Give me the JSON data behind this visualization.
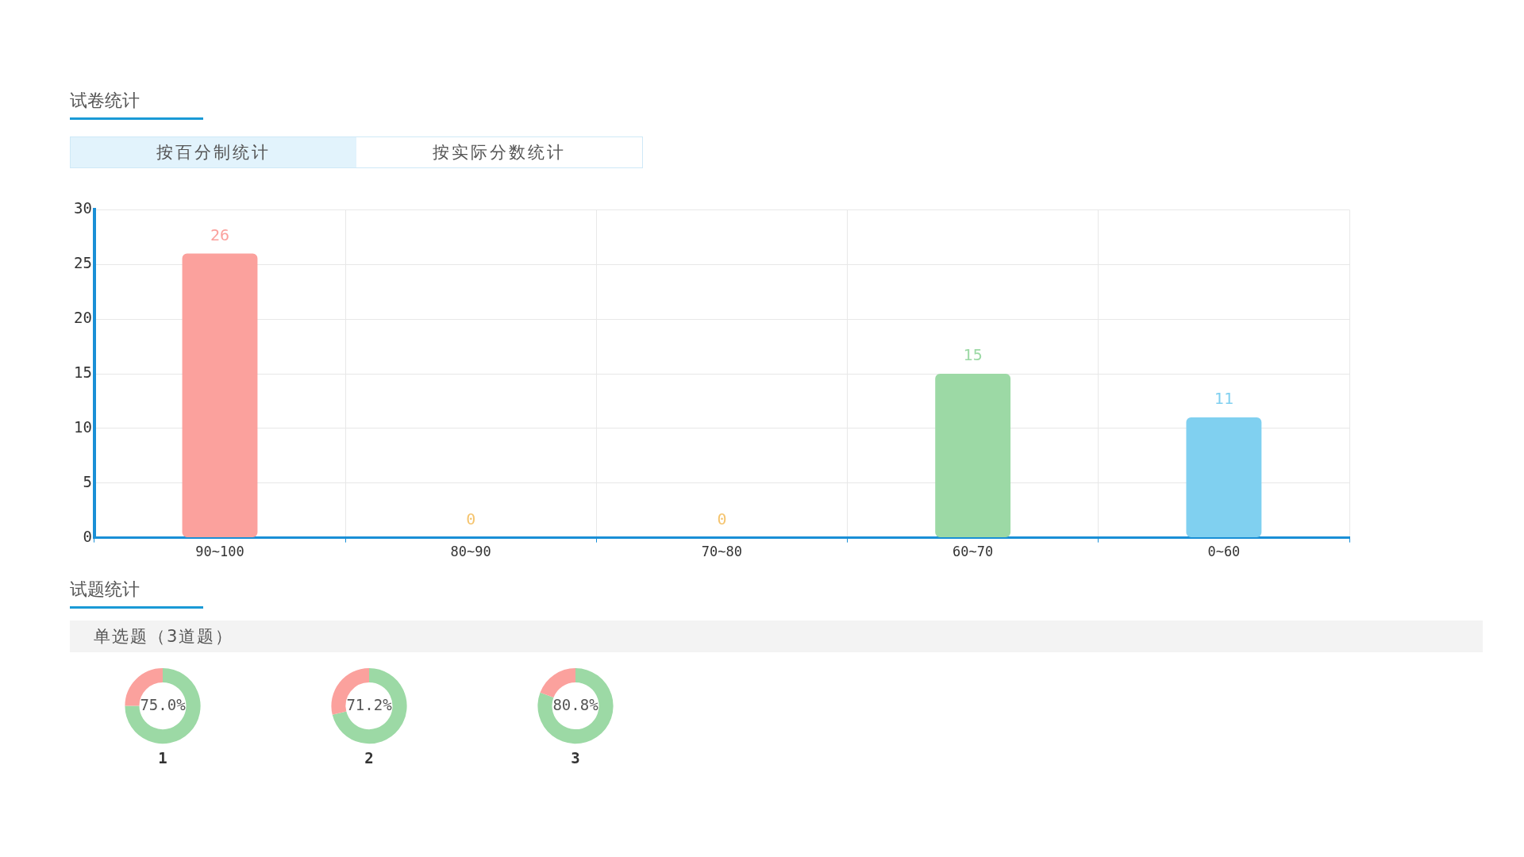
{
  "chart_data": [
    {
      "type": "bar",
      "title": "试卷统计",
      "annotations": [
        "按百分制统计",
        "按实际分数统计"
      ],
      "categories": [
        "90~100",
        "80~90",
        "70~80",
        "60~70",
        "0~60"
      ],
      "values": [
        26,
        0,
        0,
        15,
        11
      ],
      "colors": [
        "#fba19d",
        "#f5c46e",
        "#f5c46e",
        "#9cd9a5",
        "#80d0f0"
      ],
      "ylim": [
        0,
        30
      ],
      "yticks": [
        0,
        5,
        10,
        15,
        20,
        25,
        30
      ],
      "grid": true,
      "data_labels": true,
      "legend": false
    },
    {
      "type": "other",
      "title": "试题统计",
      "subtitle": "单选题（3道题）"
    },
    {
      "type": "donut",
      "title": "1",
      "categories": [
        null,
        null
      ],
      "values": [
        75.0,
        25.0
      ],
      "colors": [
        "#9cd9a5",
        "#fba19d"
      ],
      "annotations": [
        "75.0%"
      ],
      "legend": false
    },
    {
      "type": "donut",
      "title": "2",
      "categories": [
        null,
        null
      ],
      "values": [
        71.2,
        28.8
      ],
      "colors": [
        "#9cd9a5",
        "#fba19d"
      ],
      "annotations": [
        "71.2%"
      ],
      "legend": false
    },
    {
      "type": "donut",
      "title": "3",
      "categories": [
        null,
        null
      ],
      "values": [
        80.8,
        19.2
      ],
      "colors": [
        "#9cd9a5",
        "#fba19d"
      ],
      "annotations": [
        "80.8%"
      ],
      "legend": false
    }
  ]
}
